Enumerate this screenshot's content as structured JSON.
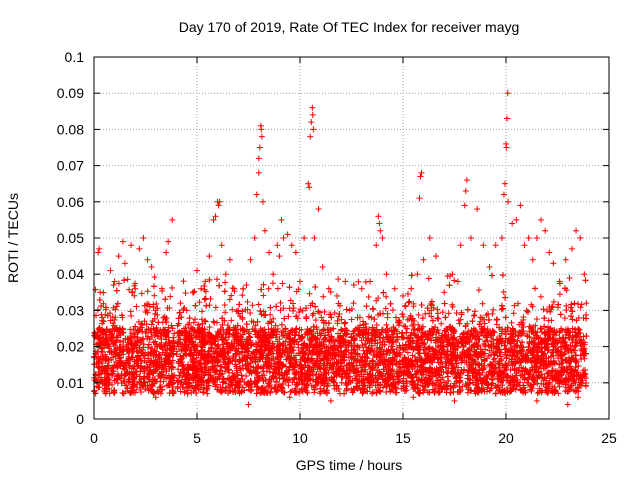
{
  "chart_data": {
    "type": "scatter",
    "title": "Day 170 of 2019, Rate Of TEC Index for receiver mayg",
    "xlabel": "GPS time / hours",
    "ylabel": "ROTI / TECUs",
    "xlim": [
      0,
      25
    ],
    "ylim": [
      0,
      0.1
    ],
    "xticks": [
      "0",
      "5",
      "10",
      "15",
      "20",
      "25"
    ],
    "yticks": [
      "0",
      "0.01",
      "0.02",
      "0.03",
      "0.04",
      "0.05",
      "0.06",
      "0.07",
      "0.08",
      "0.09",
      "0.1"
    ],
    "grid": true,
    "marker": "+",
    "color": "#ff0000",
    "series": [
      {
        "points": [
          [
            0.1,
            0.012
          ],
          [
            0.2,
            0.046
          ],
          [
            0.25,
            0.047
          ],
          [
            0.3,
            0.035
          ],
          [
            0.4,
            0.028
          ],
          [
            0.6,
            0.022
          ],
          [
            0.8,
            0.041
          ],
          [
            1.0,
            0.038
          ],
          [
            1.2,
            0.045
          ],
          [
            1.4,
            0.049
          ],
          [
            1.5,
            0.043
          ],
          [
            1.8,
            0.048
          ],
          [
            2.0,
            0.036
          ],
          [
            2.2,
            0.047
          ],
          [
            2.4,
            0.05
          ],
          [
            2.6,
            0.044
          ],
          [
            2.8,
            0.042
          ],
          [
            3.0,
            0.03
          ],
          [
            3.3,
            0.036
          ],
          [
            3.5,
            0.046
          ],
          [
            3.6,
            0.049
          ],
          [
            3.8,
            0.055
          ],
          [
            3.9,
            0.02
          ],
          [
            4.2,
            0.032
          ],
          [
            4.5,
            0.03
          ],
          [
            4.8,
            0.035
          ],
          [
            5.0,
            0.041
          ],
          [
            5.2,
            0.036
          ],
          [
            5.4,
            0.038
          ],
          [
            5.6,
            0.045
          ],
          [
            5.8,
            0.055
          ],
          [
            5.9,
            0.056
          ],
          [
            6.0,
            0.06
          ],
          [
            6.05,
            0.059
          ],
          [
            6.1,
            0.06
          ],
          [
            6.2,
            0.048
          ],
          [
            6.4,
            0.04
          ],
          [
            6.6,
            0.044
          ],
          [
            6.8,
            0.036
          ],
          [
            7.0,
            0.03
          ],
          [
            7.2,
            0.028
          ],
          [
            7.4,
            0.037
          ],
          [
            7.6,
            0.044
          ],
          [
            7.8,
            0.05
          ],
          [
            7.9,
            0.062
          ],
          [
            8.0,
            0.068
          ],
          [
            8.0,
            0.072
          ],
          [
            8.05,
            0.075
          ],
          [
            8.1,
            0.081
          ],
          [
            8.12,
            0.08
          ],
          [
            8.15,
            0.078
          ],
          [
            8.2,
            0.06
          ],
          [
            8.3,
            0.052
          ],
          [
            8.5,
            0.046
          ],
          [
            8.7,
            0.04
          ],
          [
            8.9,
            0.048
          ],
          [
            9.0,
            0.045
          ],
          [
            9.1,
            0.055
          ],
          [
            9.2,
            0.05
          ],
          [
            9.4,
            0.051
          ],
          [
            9.6,
            0.048
          ],
          [
            9.8,
            0.046
          ],
          [
            10.0,
            0.038
          ],
          [
            10.2,
            0.05
          ],
          [
            10.4,
            0.065
          ],
          [
            10.45,
            0.064
          ],
          [
            10.5,
            0.078
          ],
          [
            10.55,
            0.082
          ],
          [
            10.6,
            0.086
          ],
          [
            10.62,
            0.084
          ],
          [
            10.65,
            0.08
          ],
          [
            10.7,
            0.05
          ],
          [
            10.9,
            0.058
          ],
          [
            11.1,
            0.042
          ],
          [
            11.4,
            0.036
          ],
          [
            11.8,
            0.034
          ],
          [
            12.2,
            0.038
          ],
          [
            12.6,
            0.032
          ],
          [
            13.0,
            0.036
          ],
          [
            13.4,
            0.038
          ],
          [
            13.7,
            0.048
          ],
          [
            13.8,
            0.056
          ],
          [
            13.85,
            0.054
          ],
          [
            13.9,
            0.052
          ],
          [
            14.0,
            0.05
          ],
          [
            14.2,
            0.04
          ],
          [
            14.6,
            0.036
          ],
          [
            15.0,
            0.034
          ],
          [
            15.4,
            0.036
          ],
          [
            15.7,
            0.04
          ],
          [
            15.8,
            0.061
          ],
          [
            15.85,
            0.067
          ],
          [
            15.9,
            0.068
          ],
          [
            16.0,
            0.044
          ],
          [
            16.3,
            0.05
          ],
          [
            16.6,
            0.045
          ],
          [
            17.0,
            0.035
          ],
          [
            17.4,
            0.04
          ],
          [
            17.8,
            0.048
          ],
          [
            18.0,
            0.059
          ],
          [
            18.05,
            0.063
          ],
          [
            18.1,
            0.066
          ],
          [
            18.3,
            0.05
          ],
          [
            18.6,
            0.058
          ],
          [
            18.9,
            0.048
          ],
          [
            19.2,
            0.042
          ],
          [
            19.5,
            0.048
          ],
          [
            19.8,
            0.05
          ],
          [
            19.9,
            0.062
          ],
          [
            19.95,
            0.065
          ],
          [
            20.0,
            0.076
          ],
          [
            20.02,
            0.075
          ],
          [
            20.05,
            0.083
          ],
          [
            20.08,
            0.09
          ],
          [
            20.1,
            0.06
          ],
          [
            20.3,
            0.054
          ],
          [
            20.5,
            0.055
          ],
          [
            20.7,
            0.059
          ],
          [
            20.9,
            0.048
          ],
          [
            21.1,
            0.05
          ],
          [
            21.3,
            0.044
          ],
          [
            21.5,
            0.05
          ],
          [
            21.7,
            0.055
          ],
          [
            21.9,
            0.052
          ],
          [
            22.1,
            0.046
          ],
          [
            22.3,
            0.043
          ],
          [
            22.6,
            0.038
          ],
          [
            22.9,
            0.044
          ],
          [
            23.2,
            0.047
          ],
          [
            23.4,
            0.052
          ],
          [
            23.6,
            0.05
          ],
          [
            23.8,
            0.04
          ],
          [
            23.9,
            0.032
          ],
          [
            0.5,
            0.008
          ],
          [
            3.0,
            0.006
          ],
          [
            5.5,
            0.007
          ],
          [
            7.5,
            0.004
          ],
          [
            9.5,
            0.006
          ],
          [
            11.5,
            0.005
          ],
          [
            13.5,
            0.007
          ],
          [
            15.5,
            0.006
          ],
          [
            17.5,
            0.005
          ],
          [
            19.5,
            0.007
          ],
          [
            21.5,
            0.005
          ],
          [
            23.0,
            0.004
          ],
          [
            23.5,
            0.006
          ]
        ]
      }
    ]
  }
}
